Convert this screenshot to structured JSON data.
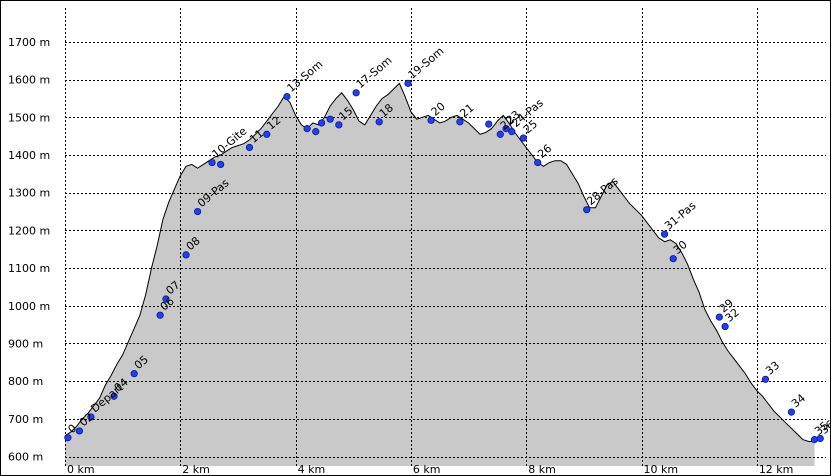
{
  "chart_data": {
    "type": "area",
    "colors": {
      "fill": "#c9c9c9",
      "outline": "#000000",
      "marker": "#1f3fff",
      "grid": "#000000",
      "background": "#ffffff"
    },
    "grid": true,
    "x_unit": "km",
    "y_unit": "m",
    "xlim": [
      0,
      13.2
    ],
    "ylim": [
      575,
      1790
    ],
    "x_ticks": [
      0,
      2,
      4,
      6,
      8,
      10,
      12
    ],
    "x_tick_labels": [
      "0 km",
      "2 km",
      "4 km",
      "6 km",
      "8 km",
      "10 km",
      "12 km"
    ],
    "y_ticks": [
      600,
      700,
      800,
      900,
      1000,
      1100,
      1200,
      1300,
      1400,
      1500,
      1600,
      1700
    ],
    "y_tick_labels": [
      "600 m",
      "700 m",
      "800 m",
      "900 m",
      "1000 m",
      "1100 m",
      "1200 m",
      "1300 m",
      "1400 m",
      "1500 m",
      "1600 m",
      "1700 m"
    ],
    "profile": {
      "x": [
        0.0,
        0.1,
        0.2,
        0.3,
        0.4,
        0.5,
        0.6,
        0.7,
        0.8,
        0.9,
        1.0,
        1.1,
        1.2,
        1.3,
        1.4,
        1.5,
        1.6,
        1.7,
        1.8,
        1.9,
        2.0,
        2.1,
        2.2,
        2.3,
        2.4,
        2.5,
        2.6,
        2.7,
        2.8,
        2.9,
        3.0,
        3.1,
        3.2,
        3.3,
        3.4,
        3.5,
        3.6,
        3.7,
        3.8,
        3.9,
        4.0,
        4.1,
        4.2,
        4.3,
        4.4,
        4.5,
        4.6,
        4.7,
        4.8,
        4.9,
        5.0,
        5.1,
        5.2,
        5.3,
        5.4,
        5.5,
        5.6,
        5.7,
        5.8,
        5.9,
        6.0,
        6.1,
        6.2,
        6.3,
        6.4,
        6.5,
        6.6,
        6.7,
        6.8,
        6.9,
        7.0,
        7.1,
        7.2,
        7.3,
        7.4,
        7.5,
        7.6,
        7.7,
        7.8,
        7.9,
        8.0,
        8.1,
        8.2,
        8.3,
        8.4,
        8.5,
        8.6,
        8.7,
        8.8,
        8.9,
        9.0,
        9.1,
        9.2,
        9.3,
        9.4,
        9.5,
        9.6,
        9.7,
        9.8,
        9.9,
        10.0,
        10.1,
        10.2,
        10.3,
        10.4,
        10.5,
        10.6,
        10.7,
        10.8,
        10.9,
        11.0,
        11.1,
        11.2,
        11.3,
        11.4,
        11.5,
        11.6,
        11.7,
        11.8,
        11.9,
        12.0,
        12.1,
        12.2,
        12.3,
        12.4,
        12.5,
        12.6,
        12.7,
        12.8,
        12.9,
        13.0
      ],
      "y": [
        655,
        665,
        680,
        700,
        715,
        735,
        755,
        790,
        815,
        845,
        870,
        905,
        940,
        975,
        1030,
        1100,
        1160,
        1230,
        1275,
        1310,
        1345,
        1370,
        1375,
        1365,
        1375,
        1385,
        1395,
        1400,
        1410,
        1420,
        1425,
        1430,
        1440,
        1455,
        1470,
        1490,
        1510,
        1530,
        1555,
        1540,
        1505,
        1480,
        1470,
        1485,
        1480,
        1500,
        1530,
        1550,
        1565,
        1545,
        1520,
        1490,
        1480,
        1505,
        1530,
        1550,
        1560,
        1575,
        1590,
        1555,
        1515,
        1495,
        1500,
        1505,
        1495,
        1485,
        1490,
        1500,
        1505,
        1495,
        1485,
        1470,
        1455,
        1460,
        1470,
        1490,
        1505,
        1485,
        1460,
        1440,
        1420,
        1400,
        1380,
        1370,
        1380,
        1385,
        1385,
        1375,
        1350,
        1325,
        1290,
        1260,
        1260,
        1290,
        1320,
        1330,
        1310,
        1290,
        1270,
        1255,
        1240,
        1220,
        1200,
        1180,
        1170,
        1175,
        1165,
        1140,
        1110,
        1070,
        1035,
        990,
        960,
        935,
        905,
        880,
        860,
        840,
        820,
        795,
        775,
        760,
        740,
        720,
        705,
        690,
        675,
        660,
        645,
        640,
        640
      ]
    },
    "waypoints": [
      {
        "label": "0",
        "x": 0.05,
        "y": 650
      },
      {
        "label": "02",
        "x": 0.25,
        "y": 668
      },
      {
        "label": "Depart",
        "x": 0.45,
        "y": 705
      },
      {
        "label": "04",
        "x": 0.85,
        "y": 760
      },
      {
        "label": "05",
        "x": 1.2,
        "y": 820
      },
      {
        "label": "06",
        "x": 1.65,
        "y": 975
      },
      {
        "label": "07",
        "x": 1.75,
        "y": 1018
      },
      {
        "label": "08",
        "x": 2.1,
        "y": 1135
      },
      {
        "label": "09-Pas",
        "x": 2.3,
        "y": 1250
      },
      {
        "label": "10-Gite",
        "x": 2.55,
        "y": 1380
      },
      {
        "label": "",
        "x": 2.7,
        "y": 1375
      },
      {
        "label": "11",
        "x": 3.2,
        "y": 1420
      },
      {
        "label": "12",
        "x": 3.5,
        "y": 1455
      },
      {
        "label": "13-Som",
        "x": 3.85,
        "y": 1555
      },
      {
        "label": "",
        "x": 4.2,
        "y": 1470
      },
      {
        "label": "",
        "x": 4.35,
        "y": 1462
      },
      {
        "label": "",
        "x": 4.45,
        "y": 1485
      },
      {
        "label": "",
        "x": 4.6,
        "y": 1495
      },
      {
        "label": "15",
        "x": 4.75,
        "y": 1480
      },
      {
        "label": "17-Som",
        "x": 5.05,
        "y": 1565
      },
      {
        "label": "18",
        "x": 5.45,
        "y": 1488
      },
      {
        "label": "19-Som",
        "x": 5.95,
        "y": 1590
      },
      {
        "label": "20",
        "x": 6.35,
        "y": 1492
      },
      {
        "label": "21",
        "x": 6.85,
        "y": 1488
      },
      {
        "label": "",
        "x": 7.35,
        "y": 1482
      },
      {
        "label": "22",
        "x": 7.55,
        "y": 1455
      },
      {
        "label": "23",
        "x": 7.65,
        "y": 1470
      },
      {
        "label": "24-Pas",
        "x": 7.75,
        "y": 1462
      },
      {
        "label": "25",
        "x": 7.95,
        "y": 1445
      },
      {
        "label": "26",
        "x": 8.2,
        "y": 1380
      },
      {
        "label": "28-Pas",
        "x": 9.05,
        "y": 1255
      },
      {
        "label": "31-Pas",
        "x": 10.4,
        "y": 1190
      },
      {
        "label": "30",
        "x": 10.55,
        "y": 1125
      },
      {
        "label": "29",
        "x": 11.35,
        "y": 970
      },
      {
        "label": "32",
        "x": 11.45,
        "y": 945
      },
      {
        "label": "33",
        "x": 12.15,
        "y": 805
      },
      {
        "label": "34",
        "x": 12.6,
        "y": 718
      },
      {
        "label": "35",
        "x": 13.0,
        "y": 645
      },
      {
        "label": "36",
        "x": 13.1,
        "y": 648
      }
    ]
  }
}
